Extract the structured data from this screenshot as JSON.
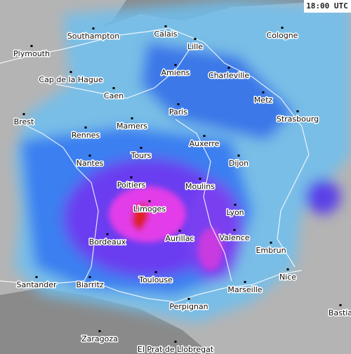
{
  "time_label": "18:00 UTC",
  "cities": [
    "Plymouth",
    "Southampton",
    "Calais",
    "Cologne",
    "Lille",
    "Amiens",
    "Charleville",
    "Cap de la Hague",
    "Caen",
    "Metz",
    "Paris",
    "Brest",
    "Strasbourg",
    "Mamers",
    "Rennes",
    "Auxerre",
    "Tours",
    "Nantes",
    "Dijon",
    "Poitiers",
    "Moulins",
    "Limoges",
    "Lyon",
    "Aurillac",
    "Valence",
    "Bordeaux",
    "Embrun",
    "Nice",
    "Toulouse",
    "Santander",
    "Biarritz",
    "Marseille",
    "Perpignan",
    "Bastia",
    "Zaragoza",
    "El Prat de Llobregat"
  ]
}
